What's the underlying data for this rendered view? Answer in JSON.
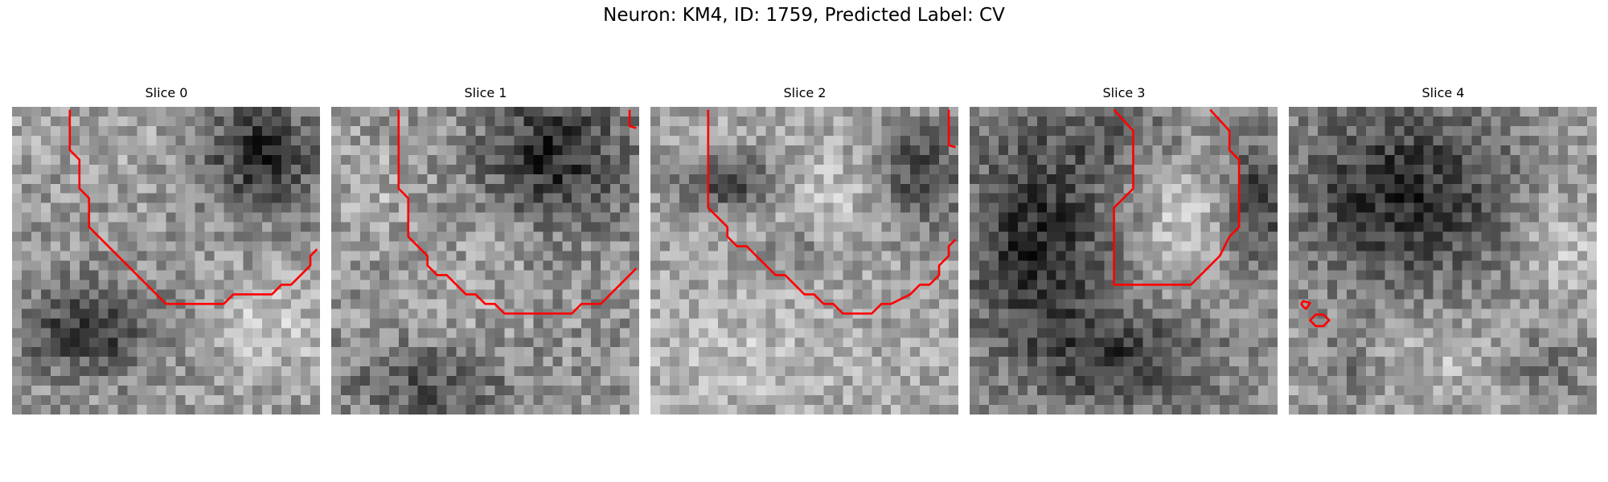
{
  "figure": {
    "title": "Neuron: KM4, ID: 1759, Predicted Label: CV"
  },
  "colors": {
    "contour": "#ff0000",
    "background": "#ffffff"
  },
  "panels": [
    {
      "title": "Slice 0",
      "image_description_id": "grayscale-patch-0"
    },
    {
      "title": "Slice 1",
      "image_description_id": "grayscale-patch-1"
    },
    {
      "title": "Slice 2",
      "image_description_id": "grayscale-patch-2"
    },
    {
      "title": "Slice 3",
      "image_description_id": "grayscale-patch-3"
    },
    {
      "title": "Slice 4",
      "image_description_id": "grayscale-patch-4"
    }
  ]
}
